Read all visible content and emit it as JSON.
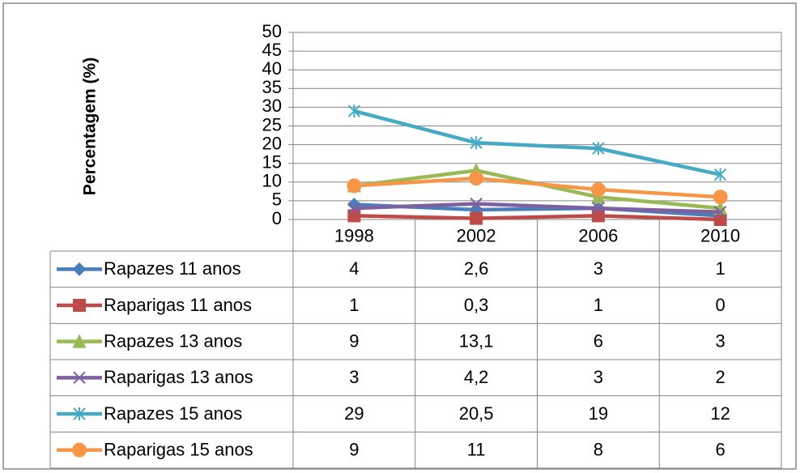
{
  "chart_data": {
    "type": "line",
    "y_label": "Percentagem  (%)",
    "categories": [
      "1998",
      "2002",
      "2006",
      "2010"
    ],
    "series": [
      {
        "name": "Rapazes 11 anos",
        "color": "#4a7ebb",
        "marker": "diamond",
        "values": [
          4,
          2.6,
          3,
          1
        ],
        "value_labels": [
          "4",
          "2,6",
          "3",
          "1"
        ]
      },
      {
        "name": "Raparigas 11 anos",
        "color": "#be4b48",
        "marker": "square",
        "values": [
          1,
          0.3,
          1,
          0
        ],
        "value_labels": [
          "1",
          "0,3",
          "1",
          "0"
        ]
      },
      {
        "name": "Rapazes 13 anos",
        "color": "#98b954",
        "marker": "triangle",
        "values": [
          9,
          13.1,
          6,
          3
        ],
        "value_labels": [
          "9",
          "13,1",
          "6",
          "3"
        ]
      },
      {
        "name": "Raparigas 13 anos",
        "color": "#7d60a0",
        "marker": "x",
        "values": [
          3,
          4.2,
          3,
          2
        ],
        "value_labels": [
          "3",
          "4,2",
          "3",
          "2"
        ]
      },
      {
        "name": "Rapazes 15 anos",
        "color": "#46aac5",
        "marker": "star",
        "values": [
          29,
          20.5,
          19,
          12
        ],
        "value_labels": [
          "29",
          "20,5",
          "19",
          "12"
        ]
      },
      {
        "name": "Raparigas 15 anos",
        "color": "#f79646",
        "marker": "circle",
        "values": [
          9,
          11,
          8,
          6
        ],
        "value_labels": [
          "9",
          "11",
          "8",
          "6"
        ]
      }
    ],
    "ylim": [
      0,
      50
    ],
    "yticks": [
      0,
      5,
      10,
      15,
      20,
      25,
      30,
      35,
      40,
      45,
      50
    ],
    "grid": true
  }
}
